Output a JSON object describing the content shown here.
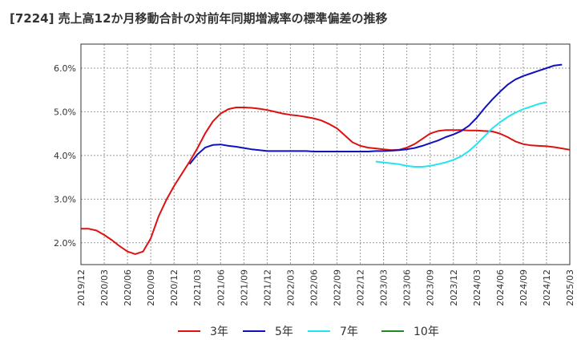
{
  "chart_data": {
    "type": "line",
    "title": "[7224]  売上高12か月移動合計の対前年同期増減率の標準偏差の推移",
    "xlabel": "",
    "ylabel": "",
    "ylim": [
      1.5,
      6.55
    ],
    "yticks": [
      2.0,
      3.0,
      4.0,
      5.0,
      6.0
    ],
    "ytick_labels": [
      "2.0%",
      "3.0%",
      "4.0%",
      "5.0%",
      "6.0%"
    ],
    "xlim": [
      0,
      63
    ],
    "xticks": [
      0,
      3,
      6,
      9,
      12,
      15,
      18,
      21,
      24,
      27,
      30,
      33,
      36,
      39,
      42,
      45,
      48,
      51,
      54,
      57,
      60,
      63
    ],
    "xtick_labels": [
      "2019/12",
      "2020/03",
      "2020/06",
      "2020/09",
      "2020/12",
      "2021/03",
      "2021/06",
      "2021/09",
      "2021/12",
      "2022/03",
      "2022/06",
      "2022/09",
      "2022/12",
      "2023/03",
      "2023/06",
      "2023/09",
      "2023/12",
      "2024/03",
      "2024/06",
      "2024/09",
      "2024/12",
      "2025/03"
    ],
    "grid": true,
    "legend_position": "bottom",
    "series": [
      {
        "name": "3年",
        "color": "#dd1111",
        "x_start": 0,
        "values": [
          2.32,
          2.32,
          2.28,
          2.18,
          2.06,
          1.92,
          1.8,
          1.74,
          1.8,
          2.1,
          2.6,
          2.98,
          3.3,
          3.58,
          3.86,
          4.16,
          4.5,
          4.78,
          4.96,
          5.06,
          5.1,
          5.1,
          5.09,
          5.07,
          5.04,
          5.0,
          4.96,
          4.93,
          4.91,
          4.88,
          4.85,
          4.8,
          4.72,
          4.62,
          4.46,
          4.3,
          4.22,
          4.18,
          4.16,
          4.14,
          4.12,
          4.13,
          4.18,
          4.26,
          4.38,
          4.5,
          4.56,
          4.58,
          4.58,
          4.58,
          4.57,
          4.57,
          4.56,
          4.55,
          4.5,
          4.42,
          4.32,
          4.26,
          4.23,
          4.22,
          4.21,
          4.19,
          4.16,
          4.13
        ]
      },
      {
        "name": "5年",
        "color": "#1111bb",
        "x_start": 14,
        "values": [
          3.8,
          4.02,
          4.18,
          4.24,
          4.25,
          4.22,
          4.2,
          4.17,
          4.14,
          4.12,
          4.1,
          4.1,
          4.1,
          4.1,
          4.1,
          4.1,
          4.09,
          4.09,
          4.09,
          4.09,
          4.09,
          4.09,
          4.09,
          4.09,
          4.1,
          4.1,
          4.11,
          4.12,
          4.14,
          4.17,
          4.22,
          4.28,
          4.34,
          4.42,
          4.48,
          4.56,
          4.68,
          4.86,
          5.08,
          5.28,
          5.46,
          5.62,
          5.74,
          5.82,
          5.88,
          5.94,
          6.0,
          6.06,
          6.08
        ]
      },
      {
        "name": "7年",
        "color": "#22e5ee",
        "x_start": 38,
        "values": [
          3.86,
          3.84,
          3.82,
          3.8,
          3.76,
          3.74,
          3.74,
          3.76,
          3.8,
          3.84,
          3.9,
          3.98,
          4.1,
          4.26,
          4.44,
          4.62,
          4.76,
          4.88,
          4.98,
          5.06,
          5.12,
          5.18,
          5.22
        ]
      },
      {
        "name": "10年",
        "color": "#228822",
        "x_start": 0,
        "values": []
      }
    ]
  }
}
